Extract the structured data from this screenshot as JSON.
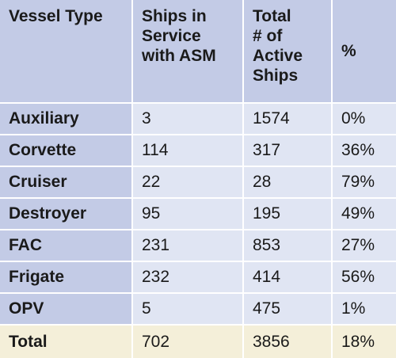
{
  "table": {
    "headers": [
      [
        "Vessel Type"
      ],
      [
        "Ships in",
        "Service",
        "with ASM"
      ],
      [
        "Total",
        "# of",
        "Active",
        "Ships"
      ],
      [
        "%"
      ]
    ],
    "rows": [
      {
        "type": "Auxiliary",
        "asm": "3",
        "total": "1574",
        "pct": "0%"
      },
      {
        "type": "Corvette",
        "asm": "114",
        "total": "317",
        "pct": "36%"
      },
      {
        "type": "Cruiser",
        "asm": "22",
        "total": "28",
        "pct": "79%"
      },
      {
        "type": "Destroyer",
        "asm": "95",
        "total": "195",
        "pct": "49%"
      },
      {
        "type": "FAC",
        "asm": "231",
        "total": "853",
        "pct": "27%"
      },
      {
        "type": "Frigate",
        "asm": "232",
        "total": "414",
        "pct": "56%"
      },
      {
        "type": "OPV",
        "asm": "5",
        "total": "475",
        "pct": "1%"
      }
    ],
    "total_row": {
      "type": "Total",
      "asm": "702",
      "total": "3856",
      "pct": "18%"
    }
  }
}
